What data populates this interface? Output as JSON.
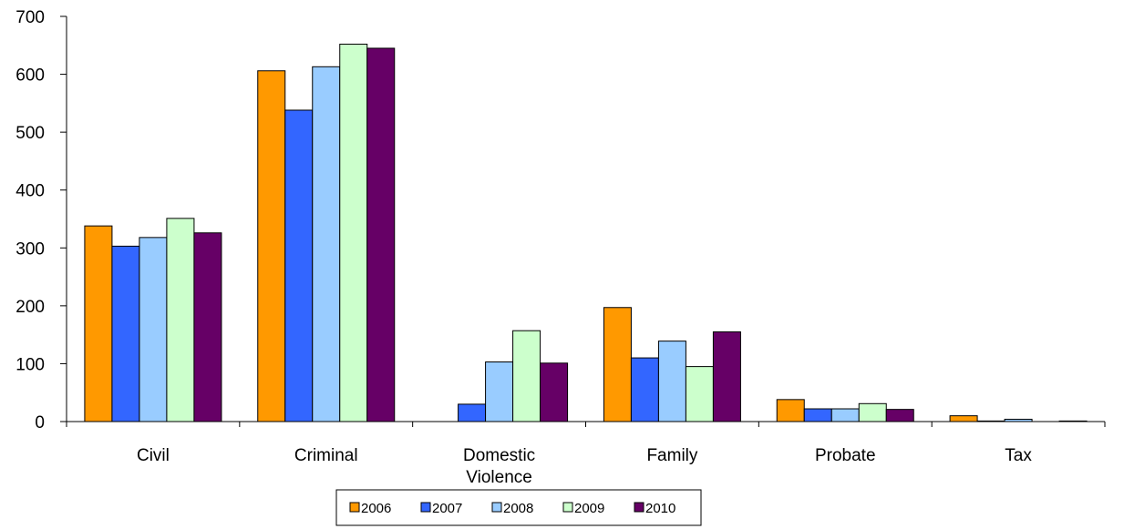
{
  "chart_data": {
    "type": "bar",
    "title": "",
    "xlabel": "",
    "ylabel": "",
    "categories": [
      "Civil",
      "Criminal",
      "Domestic Violence",
      "Family",
      "Probate",
      "Tax"
    ],
    "series": [
      {
        "name": "2006",
        "color": "#FF9900",
        "values": [
          338,
          606,
          0,
          197,
          38,
          10
        ]
      },
      {
        "name": "2007",
        "color": "#3366FF",
        "values": [
          303,
          538,
          30,
          110,
          22,
          1
        ]
      },
      {
        "name": "2008",
        "color": "#99CCFF",
        "values": [
          318,
          613,
          103,
          139,
          22,
          4
        ]
      },
      {
        "name": "2009",
        "color": "#CCFFCC",
        "values": [
          351,
          652,
          157,
          95,
          31,
          0
        ]
      },
      {
        "name": "2010",
        "color": "#660066",
        "values": [
          326,
          645,
          101,
          155,
          21,
          1
        ]
      }
    ],
    "ylim": [
      0,
      700
    ],
    "yticks": [
      0,
      100,
      200,
      300,
      400,
      500,
      600,
      700
    ],
    "grid": false,
    "legend_position": "bottom"
  }
}
